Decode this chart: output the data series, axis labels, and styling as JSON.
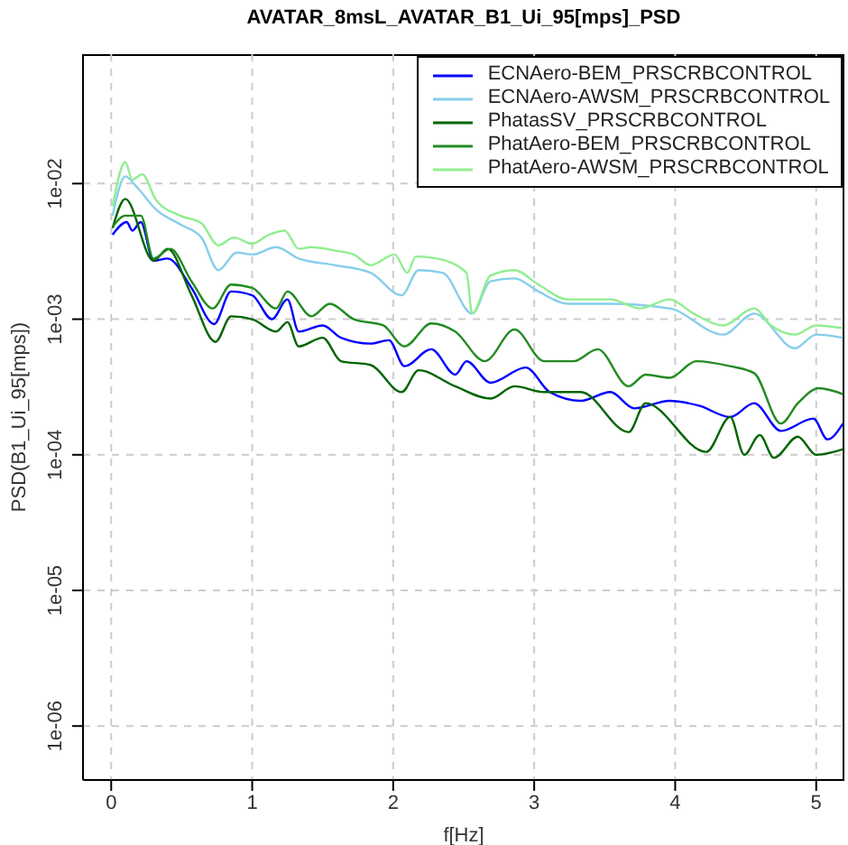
{
  "chart_data": {
    "type": "line",
    "title": "AVATAR_8msL_AVATAR_B1_Ui_95[mps]_PSD",
    "xlabel": "f[Hz]",
    "ylabel": "PSD(B1_Ui_95[mps])",
    "log": "y",
    "grid": true,
    "legend": "top right",
    "line_style": "solid",
    "marker": "none",
    "xlim": [
      -0.2,
      5.2
    ],
    "xticks": [
      0,
      1,
      2,
      3,
      4,
      5
    ],
    "ylim": [
      4e-07,
      0.09
    ],
    "yticks": [
      {
        "value": 1e-06,
        "label": "1e-06"
      },
      {
        "value": 1e-05,
        "label": "1e-05"
      },
      {
        "value": 0.0001,
        "label": "1e-04"
      },
      {
        "value": 0.001,
        "label": "1e-03"
      },
      {
        "value": 0.01,
        "label": "1e-02"
      }
    ],
    "series": [
      {
        "name": "ECNAero-BEM_PRSCRBCONTROL",
        "color": "#0000ff",
        "x": [
          0.01,
          0.11,
          0.15,
          0.21,
          0.3,
          0.4,
          0.57,
          0.73,
          0.85,
          1.0,
          1.14,
          1.25,
          1.33,
          1.5,
          1.63,
          1.84,
          1.97,
          2.08,
          2.27,
          2.44,
          2.52,
          2.69,
          2.94,
          3.11,
          3.33,
          3.54,
          3.71,
          3.96,
          4.17,
          4.39,
          4.56,
          4.75,
          4.98,
          5.08,
          5.19
        ],
        "values": [
          0.0042,
          0.0052,
          0.0045,
          0.0052,
          0.0027,
          0.0028,
          0.0017,
          0.00092,
          0.0016,
          0.0015,
          0.001,
          0.0014,
          0.00081,
          0.0009,
          0.00073,
          0.00066,
          0.0007,
          0.00045,
          0.0006,
          0.00039,
          0.00049,
          0.00034,
          0.00044,
          0.00029,
          0.00025,
          0.00029,
          0.00022,
          0.00025,
          0.00023,
          0.00019,
          0.00024,
          0.00015,
          0.000185,
          0.00013,
          0.00017
        ]
      },
      {
        "name": "ECNAero-AWSM_PRSCRBCONTROL",
        "color": "#87ceeb",
        "x": [
          0.01,
          0.1,
          0.19,
          0.32,
          0.49,
          0.64,
          0.76,
          0.89,
          1.0,
          1.17,
          1.33,
          1.59,
          1.84,
          2.06,
          2.18,
          2.35,
          2.56,
          2.69,
          2.86,
          3.03,
          3.24,
          3.54,
          3.96,
          4.34,
          4.56,
          4.85,
          5.0,
          5.19
        ],
        "values": [
          0.0058,
          0.0113,
          0.0092,
          0.0064,
          0.005,
          0.004,
          0.0023,
          0.0031,
          0.003,
          0.0034,
          0.0028,
          0.0025,
          0.0022,
          0.0015,
          0.0023,
          0.0022,
          0.0011,
          0.0019,
          0.002,
          0.0016,
          0.0013,
          0.0013,
          0.0012,
          0.00077,
          0.0011,
          0.00061,
          0.00077,
          0.00073
        ]
      },
      {
        "name": "PhatasSV_PRSCRBCONTROL",
        "color": "#006400",
        "x": [
          0.01,
          0.1,
          0.3,
          0.4,
          0.57,
          0.74,
          0.85,
          1.0,
          1.17,
          1.25,
          1.33,
          1.5,
          1.63,
          1.84,
          2.06,
          2.18,
          2.44,
          2.69,
          2.86,
          3.07,
          3.33,
          3.67,
          3.79,
          4.22,
          4.39,
          4.49,
          4.6,
          4.7,
          4.87,
          5.0,
          5.19
        ],
        "values": [
          0.0047,
          0.0077,
          0.0027,
          0.0033,
          0.0015,
          0.00068,
          0.00105,
          0.001,
          0.00081,
          0.00095,
          0.00063,
          0.00073,
          0.00049,
          0.00046,
          0.00029,
          0.00042,
          0.00032,
          0.00026,
          0.00032,
          0.00029,
          0.00029,
          0.000147,
          0.00024,
          0.000105,
          0.00019,
          0.0001,
          0.00014,
          9.5e-05,
          0.000136,
          0.0001,
          0.00011
        ]
      },
      {
        "name": "PhatAero-BEM_PRSCRBCONTROL",
        "color": "#228b22",
        "x": [
          0.01,
          0.1,
          0.21,
          0.3,
          0.42,
          0.57,
          0.72,
          0.85,
          1.0,
          1.17,
          1.25,
          1.42,
          1.55,
          1.72,
          1.93,
          2.08,
          2.27,
          2.44,
          2.65,
          2.86,
          3.07,
          3.28,
          3.45,
          3.67,
          3.79,
          3.96,
          4.15,
          4.39,
          4.56,
          4.75,
          4.87,
          5.02,
          5.19
        ],
        "values": [
          0.0048,
          0.0058,
          0.0058,
          0.0028,
          0.0033,
          0.0019,
          0.0012,
          0.0018,
          0.0017,
          0.0012,
          0.0016,
          0.00105,
          0.0013,
          0.001,
          0.0009,
          0.00063,
          0.00093,
          0.00081,
          0.00049,
          0.00084,
          0.00049,
          0.00049,
          0.0006,
          0.00032,
          0.00039,
          0.00037,
          0.00049,
          0.00045,
          0.0004,
          0.00017,
          0.00024,
          0.00031,
          0.00028
        ]
      },
      {
        "name": "PhatAero-AWSM_PRSCRBCONTROL",
        "color": "#90ee90",
        "x": [
          0.01,
          0.1,
          0.15,
          0.22,
          0.32,
          0.49,
          0.64,
          0.76,
          0.87,
          1.0,
          1.12,
          1.23,
          1.33,
          1.42,
          1.59,
          1.72,
          1.84,
          2.01,
          2.1,
          2.16,
          2.31,
          2.52,
          2.56,
          2.69,
          2.86,
          3.03,
          3.24,
          3.41,
          3.54,
          3.75,
          3.96,
          4.13,
          4.34,
          4.56,
          4.68,
          4.85,
          5.0,
          5.19
        ],
        "values": [
          0.0068,
          0.0144,
          0.0107,
          0.0117,
          0.0075,
          0.0058,
          0.0051,
          0.0035,
          0.004,
          0.0036,
          0.0042,
          0.0045,
          0.0033,
          0.0034,
          0.0032,
          0.003,
          0.0025,
          0.003,
          0.0022,
          0.0029,
          0.0028,
          0.0022,
          0.0011,
          0.0021,
          0.0023,
          0.0018,
          0.0014,
          0.0014,
          0.0014,
          0.0012,
          0.0014,
          0.0011,
          0.0009,
          0.0012,
          0.0009,
          0.00077,
          0.0009,
          0.00086
        ]
      }
    ]
  }
}
